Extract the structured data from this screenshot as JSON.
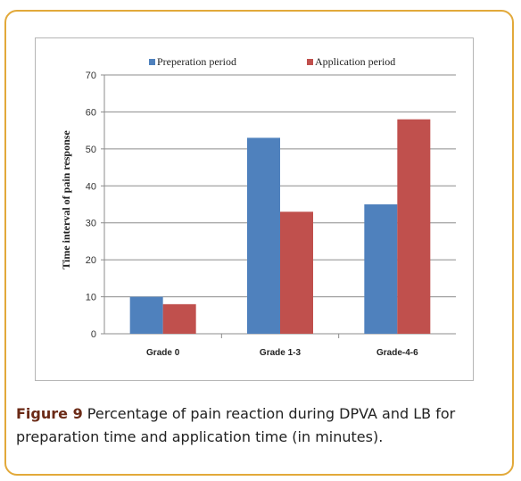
{
  "chart_data": {
    "type": "bar",
    "ylabel": "Time interval of pain response",
    "xlabel": "",
    "ylim": [
      0,
      70
    ],
    "yticks": [
      0,
      10,
      20,
      30,
      40,
      50,
      60,
      70
    ],
    "grid": true,
    "legend_position": "top",
    "categories": [
      "Grade 0",
      "Grade 1-3",
      "Grade-4-6"
    ],
    "series": [
      {
        "name": "Preperation period",
        "color": "#4f81bd",
        "values": [
          10,
          53,
          35
        ]
      },
      {
        "name": "Application period",
        "color": "#c0504d",
        "values": [
          8,
          33,
          58
        ]
      }
    ]
  },
  "caption": {
    "label": "Figure 9",
    "text": " Percentage of pain reaction during DPVA and LB for preparation time and application time (in minutes)."
  }
}
